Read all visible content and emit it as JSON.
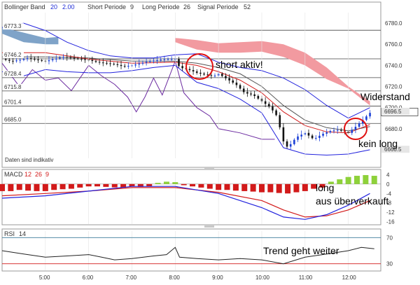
{
  "header": {
    "bollinger_label": "Bollinger Band",
    "bollinger_params": [
      "20",
      "2.00"
    ],
    "short_label": "Short Periode",
    "short_value": "9",
    "long_label": "Long Periode",
    "long_value": "26",
    "signal_label": "Signal Periode",
    "signal_value": "52"
  },
  "footer_note": "Daten sind indikativ",
  "macd_header": {
    "label": "MACD",
    "params": [
      "12",
      "26",
      "9"
    ]
  },
  "rsi_header": {
    "label": "RSI",
    "param": "14"
  },
  "annotations": {
    "short": "short aktiv!",
    "widerstand": "Widerstand",
    "kein_long": "kein long",
    "long1": "long",
    "long2": "aus überverkauft",
    "trend": "Trend geht weiter"
  },
  "colors": {
    "candle_up": "#1a3fd6",
    "candle_down": "#111111",
    "bollinger": "#2222dd",
    "ma": "#d21a1a",
    "signal_line": "#6b2aa0",
    "cloud": "#f29aa0",
    "cloud_blue": "#7fa3c8",
    "macd_pos": "#8ed13a",
    "macd_neg": "#d21a1a",
    "circle": "#e01010"
  },
  "chart_data": [
    {
      "type": "candlestick",
      "panel": "price",
      "x_ticks": [
        "5:00",
        "6:00",
        "7:00",
        "8:00",
        "9:00",
        "10:00",
        "11:00",
        "12:00"
      ],
      "y_ticks": [
        "6780.0",
        "6760.0",
        "6740.0",
        "6720.0",
        "6700.0",
        "6680.0",
        "6660.0"
      ],
      "ylim": [
        6652,
        6790
      ],
      "price_levels": [
        {
          "label": "6773.3",
          "value": 6773.3
        },
        {
          "label": "6746.2",
          "value": 6746.2
        },
        {
          "label": "6728.4",
          "value": 6728.4
        },
        {
          "label": "6715.8",
          "value": 6715.8
        },
        {
          "label": "6701.4",
          "value": 6701.4
        },
        {
          "label": "6685.0",
          "value": 6685.0
        }
      ],
      "last_price": "6695.5",
      "right_markers": [
        "6696.5",
        "6660.5"
      ],
      "price_path": [
        [
          4.0,
          6746
        ],
        [
          4.2,
          6744
        ],
        [
          4.4,
          6745
        ],
        [
          4.6,
          6747
        ],
        [
          4.8,
          6745
        ],
        [
          5.0,
          6744
        ],
        [
          5.2,
          6746
        ],
        [
          5.4,
          6748
        ],
        [
          5.6,
          6747
        ],
        [
          5.8,
          6746
        ],
        [
          6.0,
          6745
        ],
        [
          6.2,
          6743
        ],
        [
          6.4,
          6742
        ],
        [
          6.6,
          6741
        ],
        [
          6.8,
          6739
        ],
        [
          7.0,
          6740
        ],
        [
          7.2,
          6742
        ],
        [
          7.4,
          6744
        ],
        [
          7.6,
          6745
        ],
        [
          7.8,
          6746
        ],
        [
          8.0,
          6746
        ],
        [
          8.1,
          6738
        ],
        [
          8.3,
          6736
        ],
        [
          8.5,
          6733
        ],
        [
          8.7,
          6731
        ],
        [
          8.9,
          6730
        ],
        [
          9.0,
          6732
        ],
        [
          9.2,
          6727
        ],
        [
          9.4,
          6722
        ],
        [
          9.6,
          6714
        ],
        [
          9.8,
          6712
        ],
        [
          10.0,
          6706
        ],
        [
          10.2,
          6700
        ],
        [
          10.35,
          6692
        ],
        [
          10.5,
          6668
        ],
        [
          10.6,
          6662
        ],
        [
          10.8,
          6672
        ],
        [
          11.0,
          6676
        ],
        [
          11.2,
          6670
        ],
        [
          11.4,
          6675
        ],
        [
          11.6,
          6678
        ],
        [
          11.8,
          6679
        ],
        [
          12.0,
          6676
        ],
        [
          12.2,
          6683
        ],
        [
          12.4,
          6691
        ],
        [
          12.5,
          6695
        ]
      ],
      "bollinger_upper": [
        [
          4.0,
          6776
        ],
        [
          4.5,
          6780
        ],
        [
          5.0,
          6773
        ],
        [
          5.5,
          6762
        ],
        [
          6.0,
          6754
        ],
        [
          6.5,
          6749
        ],
        [
          7.0,
          6747
        ],
        [
          7.5,
          6747
        ],
        [
          8.0,
          6750
        ],
        [
          8.5,
          6751
        ],
        [
          9.0,
          6743
        ],
        [
          9.5,
          6738
        ],
        [
          10.0,
          6735
        ],
        [
          10.5,
          6728
        ],
        [
          11.0,
          6717
        ],
        [
          11.5,
          6702
        ],
        [
          12.0,
          6690
        ],
        [
          12.5,
          6700
        ]
      ],
      "bollinger_lower": [
        [
          4.0,
          6734
        ],
        [
          4.5,
          6730
        ],
        [
          5.0,
          6736
        ],
        [
          5.5,
          6734
        ],
        [
          6.0,
          6733
        ],
        [
          6.5,
          6733
        ],
        [
          7.0,
          6735
        ],
        [
          7.5,
          6738
        ],
        [
          8.0,
          6740
        ],
        [
          8.5,
          6724
        ],
        [
          9.0,
          6718
        ],
        [
          9.5,
          6708
        ],
        [
          10.0,
          6695
        ],
        [
          10.5,
          6662
        ],
        [
          11.0,
          6656
        ],
        [
          11.5,
          6655
        ],
        [
          12.0,
          6656
        ],
        [
          12.5,
          6660
        ]
      ],
      "moving_average": [
        [
          4.0,
          6752
        ],
        [
          5.0,
          6752
        ],
        [
          6.0,
          6746
        ],
        [
          7.0,
          6742
        ],
        [
          8.0,
          6743
        ],
        [
          8.5,
          6740
        ],
        [
          9.0,
          6734
        ],
        [
          9.5,
          6726
        ],
        [
          10.0,
          6714
        ],
        [
          10.5,
          6696
        ],
        [
          11.0,
          6683
        ],
        [
          11.5,
          6677
        ],
        [
          12.0,
          6676
        ],
        [
          12.5,
          6684
        ]
      ],
      "slow_average": [
        [
          4.0,
          6748
        ],
        [
          5.0,
          6748
        ],
        [
          6.0,
          6747
        ],
        [
          7.0,
          6744
        ],
        [
          8.0,
          6744
        ],
        [
          8.5,
          6742
        ],
        [
          9.0,
          6738
        ],
        [
          9.5,
          6732
        ],
        [
          10.0,
          6720
        ],
        [
          10.5,
          6702
        ],
        [
          11.0,
          6688
        ],
        [
          11.5,
          6681
        ],
        [
          12.0,
          6678
        ],
        [
          12.5,
          6682
        ]
      ],
      "signal_line": [
        [
          4.0,
          6742
        ],
        [
          4.4,
          6720
        ],
        [
          4.7,
          6736
        ],
        [
          5.0,
          6726
        ],
        [
          5.3,
          6728
        ],
        [
          5.6,
          6716
        ],
        [
          6.0,
          6740
        ],
        [
          6.3,
          6730
        ],
        [
          6.6,
          6722
        ],
        [
          6.9,
          6710
        ],
        [
          7.1,
          6696
        ],
        [
          7.3,
          6710
        ],
        [
          7.5,
          6728
        ],
        [
          7.7,
          6712
        ],
        [
          8.0,
          6744
        ],
        [
          8.2,
          6714
        ],
        [
          8.5,
          6700
        ],
        [
          8.8,
          6692
        ],
        [
          9.0,
          6680
        ],
        [
          9.5,
          6676
        ],
        [
          10.0,
          6670
        ],
        [
          10.3,
          6670
        ]
      ],
      "cloud_upper": [
        [
          8.0,
          6766
        ],
        [
          8.5,
          6764
        ],
        [
          9.0,
          6761
        ],
        [
          9.5,
          6762
        ],
        [
          10.0,
          6763
        ],
        [
          10.5,
          6760
        ],
        [
          11.0,
          6752
        ],
        [
          11.5,
          6738
        ],
        [
          12.0,
          6720
        ],
        [
          12.5,
          6706
        ]
      ],
      "cloud_lower": [
        [
          8.0,
          6762
        ],
        [
          8.5,
          6755
        ],
        [
          9.0,
          6752
        ],
        [
          9.5,
          6752
        ],
        [
          10.0,
          6753
        ],
        [
          10.5,
          6748
        ],
        [
          11.0,
          6740
        ],
        [
          11.5,
          6727
        ],
        [
          12.0,
          6718
        ],
        [
          12.5,
          6702
        ]
      ],
      "cloud_blue_upper": [
        [
          4.0,
          6776
        ],
        [
          4.5,
          6771
        ],
        [
          5.0,
          6766
        ],
        [
          5.3,
          6767
        ]
      ],
      "cloud_blue_lower": [
        [
          4.0,
          6770
        ],
        [
          4.5,
          6762
        ],
        [
          5.0,
          6760
        ],
        [
          5.3,
          6760
        ]
      ]
    },
    {
      "type": "bar",
      "panel": "macd",
      "y_ticks": [
        "4",
        "0",
        "-4",
        "-8",
        "-12",
        "-16"
      ],
      "ylim": [
        -17,
        5
      ],
      "histogram": [
        [
          4.0,
          -3.0
        ],
        [
          4.2,
          -3.0
        ],
        [
          4.4,
          -2.5
        ],
        [
          4.6,
          -2.8
        ],
        [
          4.8,
          -3.0
        ],
        [
          5.0,
          -3.0
        ],
        [
          5.2,
          -2.5
        ],
        [
          5.4,
          -2.2
        ],
        [
          5.6,
          -2.0
        ],
        [
          5.8,
          -1.5
        ],
        [
          6.0,
          -1.0
        ],
        [
          6.2,
          -1.0
        ],
        [
          6.4,
          -1.2
        ],
        [
          6.6,
          -1.4
        ],
        [
          6.8,
          -1.5
        ],
        [
          7.0,
          -1.0
        ],
        [
          7.2,
          -1.2
        ],
        [
          7.4,
          -1.0
        ],
        [
          7.6,
          0.5
        ],
        [
          7.8,
          1.0
        ],
        [
          8.0,
          0.8
        ],
        [
          8.2,
          -0.5
        ],
        [
          8.4,
          -1.0
        ],
        [
          8.6,
          -1.5
        ],
        [
          8.8,
          -2.0
        ],
        [
          9.0,
          -2.5
        ],
        [
          9.2,
          -2.5
        ],
        [
          9.4,
          -2.8
        ],
        [
          9.6,
          -3.0
        ],
        [
          9.8,
          -3.2
        ],
        [
          10.0,
          -3.5
        ],
        [
          10.2,
          -3.5
        ],
        [
          10.4,
          -3.8
        ],
        [
          10.6,
          -4.0
        ],
        [
          10.8,
          -3.5
        ],
        [
          11.0,
          -3.0
        ],
        [
          11.2,
          -2.0
        ],
        [
          11.4,
          -1.5
        ],
        [
          11.6,
          1.0
        ],
        [
          11.8,
          2.0
        ],
        [
          12.0,
          3.0
        ],
        [
          12.2,
          3.5
        ],
        [
          12.4,
          3.8
        ],
        [
          12.6,
          3.5
        ]
      ],
      "macd_line": [
        [
          4.0,
          -6
        ],
        [
          5.0,
          -5
        ],
        [
          6.0,
          -3
        ],
        [
          7.0,
          -1
        ],
        [
          7.5,
          -1
        ],
        [
          8.0,
          -1
        ],
        [
          9.0,
          -4
        ],
        [
          10.0,
          -10
        ],
        [
          10.5,
          -14
        ],
        [
          11.0,
          -15
        ],
        [
          11.5,
          -13
        ],
        [
          12.0,
          -9
        ],
        [
          12.5,
          -4
        ]
      ],
      "signal_line": [
        [
          4.0,
          -5
        ],
        [
          5.0,
          -4
        ],
        [
          6.0,
          -3
        ],
        [
          7.0,
          -1.5
        ],
        [
          8.0,
          -1.5
        ],
        [
          9.0,
          -3.5
        ],
        [
          10.0,
          -7
        ],
        [
          10.5,
          -11
        ],
        [
          11.0,
          -14
        ],
        [
          11.5,
          -13.5
        ],
        [
          12.0,
          -11
        ],
        [
          12.5,
          -7
        ]
      ]
    },
    {
      "type": "line",
      "panel": "rsi",
      "y_ticks": [
        "70",
        "30"
      ],
      "ylim": [
        20,
        80
      ],
      "upper_band": 70,
      "lower_band": 30,
      "rsi": [
        [
          4.0,
          50
        ],
        [
          4.5,
          45
        ],
        [
          5.0,
          40
        ],
        [
          5.5,
          42
        ],
        [
          6.0,
          44
        ],
        [
          6.3,
          40
        ],
        [
          6.6,
          36
        ],
        [
          7.0,
          38
        ],
        [
          7.5,
          42
        ],
        [
          7.8,
          44
        ],
        [
          8.0,
          55
        ],
        [
          8.1,
          40
        ],
        [
          8.5,
          38
        ],
        [
          9.0,
          36
        ],
        [
          9.5,
          38
        ],
        [
          10.0,
          36
        ],
        [
          10.5,
          30
        ],
        [
          11.0,
          40
        ],
        [
          11.5,
          45
        ],
        [
          12.0,
          50
        ],
        [
          12.3,
          55
        ],
        [
          12.6,
          53
        ]
      ]
    }
  ]
}
